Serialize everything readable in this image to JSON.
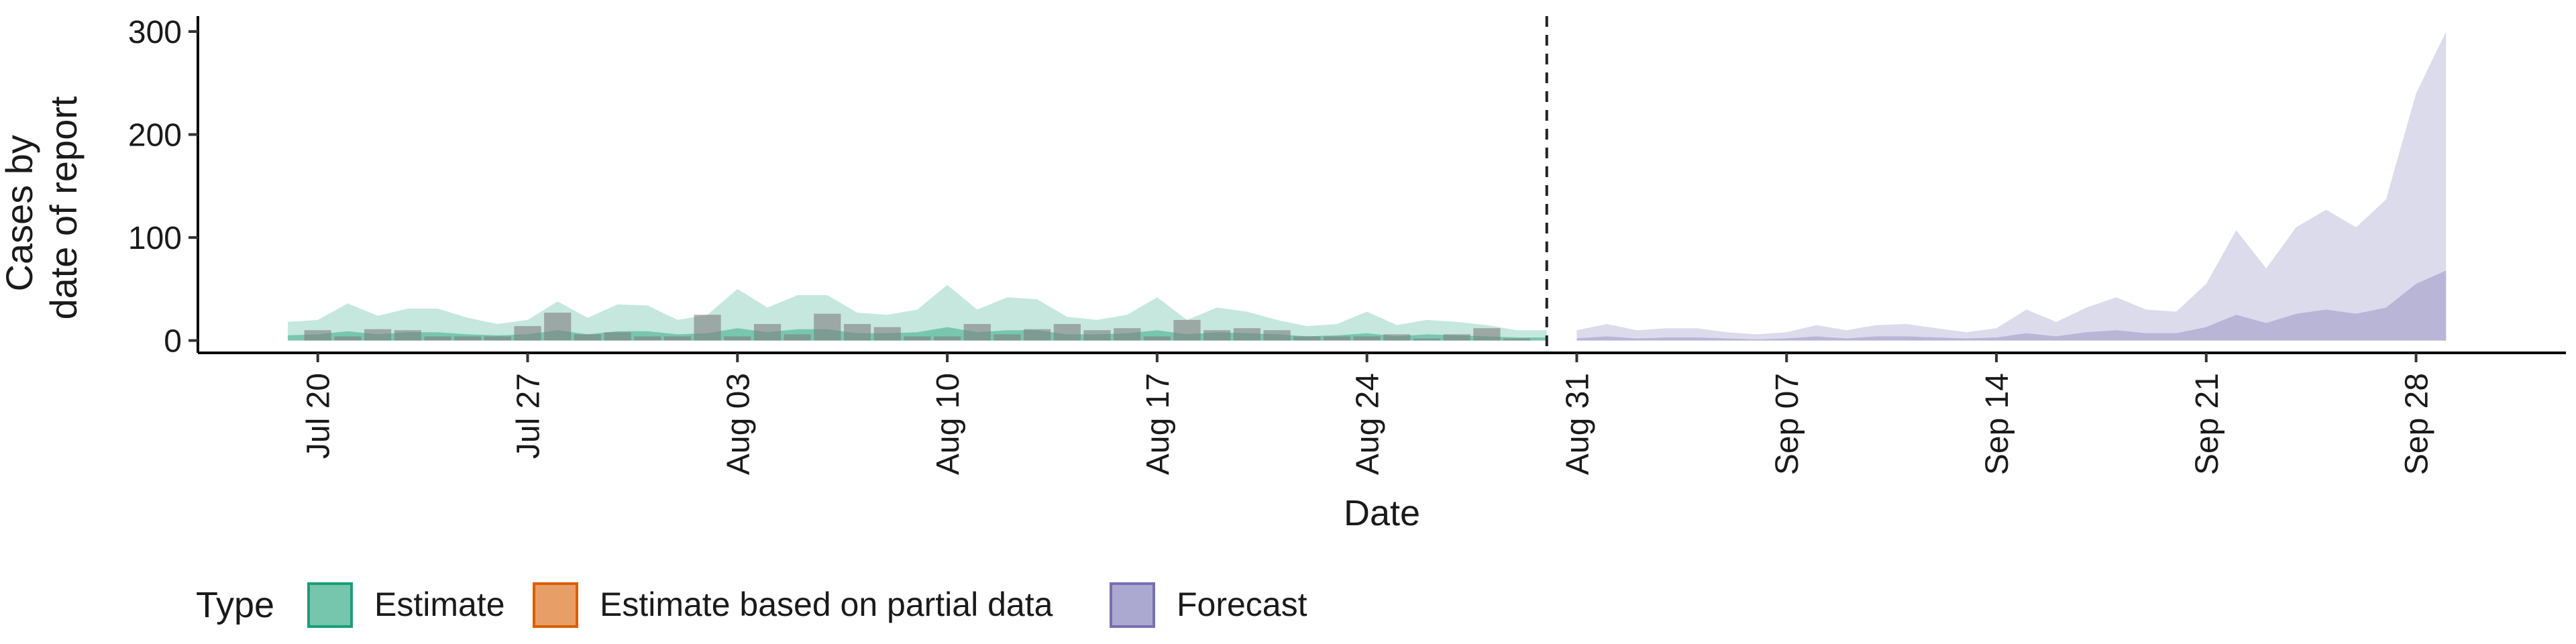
{
  "chart_data": {
    "type": "area",
    "xlabel": "Date",
    "ylabel_lines": [
      "Cases by",
      "date of report"
    ],
    "x_start": "2020-07-16",
    "x_end": "2020-10-03",
    "ylim": [
      -12,
      315
    ],
    "yticks": [
      0,
      100,
      200,
      300
    ],
    "xticks": [
      {
        "label": "Jul 20",
        "date": "2020-07-20"
      },
      {
        "label": "Jul 27",
        "date": "2020-07-27"
      },
      {
        "label": "Aug 03",
        "date": "2020-08-03"
      },
      {
        "label": "Aug 10",
        "date": "2020-08-10"
      },
      {
        "label": "Aug 17",
        "date": "2020-08-17"
      },
      {
        "label": "Aug 24",
        "date": "2020-08-24"
      },
      {
        "label": "Aug 31",
        "date": "2020-08-31"
      },
      {
        "label": "Sep 07",
        "date": "2020-09-07"
      },
      {
        "label": "Sep 14",
        "date": "2020-09-14"
      },
      {
        "label": "Sep 21",
        "date": "2020-09-21"
      },
      {
        "label": "Sep 28",
        "date": "2020-09-28"
      }
    ],
    "vline_date": "2020-08-30",
    "grid": false,
    "legend": {
      "position": "bottom-left",
      "title": "Type",
      "entries": [
        {
          "label": "Estimate",
          "fill": "#1b9e77",
          "stroke": "#1b9e77"
        },
        {
          "label": "Estimate based on partial data",
          "fill": "#d95f02",
          "stroke": "#d95f02"
        },
        {
          "label": "Forecast",
          "fill": "#7570b3",
          "stroke": "#7570b3"
        }
      ]
    },
    "estimate": {
      "dates": [
        "2020-07-19",
        "2020-07-20",
        "2020-07-21",
        "2020-07-22",
        "2020-07-23",
        "2020-07-24",
        "2020-07-25",
        "2020-07-26",
        "2020-07-27",
        "2020-07-28",
        "2020-07-29",
        "2020-07-30",
        "2020-07-31",
        "2020-08-01",
        "2020-08-02",
        "2020-08-03",
        "2020-08-04",
        "2020-08-05",
        "2020-08-06",
        "2020-08-07",
        "2020-08-08",
        "2020-08-09",
        "2020-08-10",
        "2020-08-11",
        "2020-08-12",
        "2020-08-13",
        "2020-08-14",
        "2020-08-15",
        "2020-08-16",
        "2020-08-17",
        "2020-08-18",
        "2020-08-19",
        "2020-08-20",
        "2020-08-21",
        "2020-08-22",
        "2020-08-23",
        "2020-08-24",
        "2020-08-25",
        "2020-08-26",
        "2020-08-27",
        "2020-08-28",
        "2020-08-29",
        "2020-08-30"
      ],
      "outer_upper": [
        18,
        20,
        36,
        24,
        31,
        31,
        22,
        16,
        20,
        38,
        22,
        35,
        34,
        20,
        25,
        50,
        32,
        44,
        44,
        27,
        25,
        30,
        54,
        30,
        42,
        40,
        23,
        20,
        25,
        42,
        20,
        32,
        28,
        20,
        14,
        16,
        28,
        15,
        20,
        18,
        15,
        10,
        10
      ],
      "outer_lower": [
        0,
        0,
        0,
        0,
        0,
        0,
        0,
        0,
        0,
        0,
        0,
        0,
        0,
        0,
        0,
        0,
        0,
        0,
        0,
        0,
        0,
        0,
        0,
        0,
        0,
        0,
        0,
        0,
        0,
        0,
        0,
        0,
        0,
        0,
        0,
        0,
        0,
        0,
        0,
        0,
        0,
        0,
        0
      ],
      "inner_upper": [
        5,
        6,
        9,
        6,
        8,
        8,
        6,
        5,
        6,
        10,
        6,
        9,
        9,
        6,
        7,
        12,
        8,
        11,
        11,
        7,
        7,
        8,
        13,
        8,
        10,
        10,
        6,
        6,
        7,
        10,
        6,
        8,
        7,
        6,
        4,
        5,
        7,
        4,
        6,
        5,
        4,
        3,
        3
      ],
      "inner_lower": [
        0,
        0,
        0,
        0,
        0,
        0,
        0,
        0,
        0,
        0,
        0,
        0,
        0,
        0,
        0,
        0,
        0,
        0,
        0,
        0,
        0,
        0,
        0,
        0,
        0,
        0,
        0,
        0,
        0,
        0,
        0,
        0,
        0,
        0,
        0,
        0,
        0,
        0,
        0,
        0,
        0,
        0,
        0
      ]
    },
    "forecast": {
      "dates": [
        "2020-08-31",
        "2020-09-01",
        "2020-09-02",
        "2020-09-03",
        "2020-09-04",
        "2020-09-05",
        "2020-09-06",
        "2020-09-07",
        "2020-09-08",
        "2020-09-09",
        "2020-09-10",
        "2020-09-11",
        "2020-09-12",
        "2020-09-13",
        "2020-09-14",
        "2020-09-15",
        "2020-09-16",
        "2020-09-17",
        "2020-09-18",
        "2020-09-19",
        "2020-09-20",
        "2020-09-21",
        "2020-09-22",
        "2020-09-23",
        "2020-09-24",
        "2020-09-25",
        "2020-09-26",
        "2020-09-27",
        "2020-09-28",
        "2020-09-29"
      ],
      "upper": [
        10,
        16,
        10,
        12,
        12,
        8,
        6,
        8,
        15,
        10,
        15,
        16,
        12,
        8,
        12,
        30,
        18,
        32,
        42,
        30,
        28,
        55,
        107,
        70,
        110,
        127,
        110,
        137,
        240,
        300
      ],
      "lower": [
        0,
        0,
        0,
        0,
        0,
        0,
        0,
        0,
        0,
        0,
        0,
        0,
        0,
        0,
        0,
        0,
        0,
        0,
        0,
        0,
        0,
        0,
        0,
        0,
        0,
        0,
        0,
        0,
        0,
        0
      ],
      "inner_upper": [
        2,
        4,
        2,
        3,
        3,
        2,
        1,
        2,
        4,
        2,
        4,
        4,
        3,
        2,
        3,
        7,
        4,
        8,
        10,
        7,
        7,
        13,
        25,
        17,
        26,
        30,
        26,
        32,
        55,
        68
      ]
    },
    "observed": {
      "dates": [
        "2020-07-20",
        "2020-07-21",
        "2020-07-22",
        "2020-07-23",
        "2020-07-24",
        "2020-07-25",
        "2020-07-26",
        "2020-07-27",
        "2020-07-28",
        "2020-07-29",
        "2020-07-30",
        "2020-07-31",
        "2020-08-01",
        "2020-08-02",
        "2020-08-03",
        "2020-08-04",
        "2020-08-05",
        "2020-08-06",
        "2020-08-07",
        "2020-08-08",
        "2020-08-09",
        "2020-08-10",
        "2020-08-11",
        "2020-08-12",
        "2020-08-13",
        "2020-08-14",
        "2020-08-15",
        "2020-08-16",
        "2020-08-17",
        "2020-08-18",
        "2020-08-19",
        "2020-08-20",
        "2020-08-21",
        "2020-08-22",
        "2020-08-23",
        "2020-08-24",
        "2020-08-25",
        "2020-08-26",
        "2020-08-27",
        "2020-08-28",
        "2020-08-29"
      ],
      "values": [
        10,
        4,
        11,
        10,
        4,
        4,
        4,
        14,
        27,
        6,
        8,
        4,
        4,
        25,
        4,
        16,
        6,
        26,
        16,
        13,
        4,
        4,
        16,
        6,
        11,
        16,
        10,
        12,
        4,
        20,
        10,
        12,
        10,
        4,
        4,
        4,
        6,
        2,
        6,
        12,
        2
      ]
    }
  }
}
